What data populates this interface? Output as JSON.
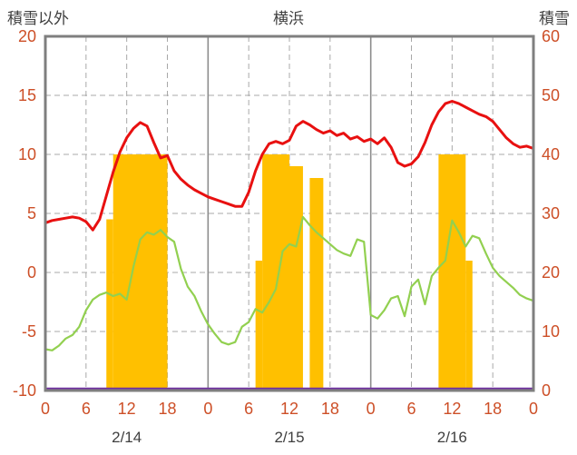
{
  "chart_data": {
    "type": "line+bar",
    "title": "横浜",
    "left_axis": {
      "label": "積雪以外",
      "min": -10,
      "max": 20,
      "ticks": [
        20,
        15,
        10,
        5,
        0,
        -5,
        -10
      ]
    },
    "right_axis": {
      "label": "積雪",
      "min": 0,
      "max": 60,
      "ticks": [
        60,
        50,
        40,
        30,
        20,
        10,
        0
      ]
    },
    "x_axis": {
      "hours_total": 72,
      "tick_interval": 6,
      "tick_labels": [
        "0",
        "6",
        "12",
        "18",
        "0",
        "6",
        "12",
        "18",
        "0",
        "6",
        "12",
        "18",
        "0"
      ],
      "day_labels": [
        {
          "label": "2/14",
          "center_hour": 12
        },
        {
          "label": "2/15",
          "center_hour": 36
        },
        {
          "label": "2/16",
          "center_hour": 60
        }
      ]
    },
    "grid": {
      "dashed": true,
      "day_boundary_solid_hours": [
        24,
        48
      ]
    },
    "series": {
      "red_line": {
        "axis": "left",
        "values": [
          4.2,
          4.4,
          4.5,
          4.6,
          4.7,
          4.6,
          4.3,
          3.6,
          4.5,
          6.5,
          8.5,
          10.2,
          11.4,
          12.2,
          12.7,
          12.4,
          11.0,
          9.7,
          9.9,
          8.6,
          7.9,
          7.4,
          7.0,
          6.7,
          6.4,
          6.2,
          6.0,
          5.8,
          5.6,
          5.6,
          6.8,
          8.6,
          10.0,
          10.9,
          11.1,
          10.9,
          11.2,
          12.4,
          12.8,
          12.5,
          12.1,
          11.8,
          12.0,
          11.6,
          11.8,
          11.3,
          11.5,
          11.1,
          11.3,
          10.9,
          11.4,
          10.6,
          9.3,
          9.0,
          9.2,
          9.8,
          11.0,
          12.5,
          13.6,
          14.3,
          14.5,
          14.3,
          14.0,
          13.7,
          13.4,
          13.2,
          12.8,
          12.1,
          11.4,
          10.9,
          10.6,
          10.7,
          10.5
        ]
      },
      "green_line": {
        "axis": "left",
        "values": [
          -6.5,
          -6.6,
          -6.2,
          -5.6,
          -5.3,
          -4.6,
          -3.2,
          -2.3,
          -1.9,
          -1.7,
          -2.0,
          -1.8,
          -2.3,
          0.5,
          2.8,
          3.4,
          3.2,
          3.6,
          3.0,
          2.6,
          0.3,
          -1.2,
          -2.0,
          -3.3,
          -4.4,
          -5.2,
          -5.9,
          -6.1,
          -5.9,
          -4.6,
          -4.2,
          -3.1,
          -3.4,
          -2.5,
          -1.4,
          1.8,
          2.4,
          2.2,
          4.7,
          4.0,
          3.4,
          2.9,
          2.4,
          1.9,
          1.6,
          1.4,
          2.8,
          2.6,
          -3.6,
          -3.9,
          -3.2,
          -2.2,
          -2.0,
          -3.7,
          -1.2,
          -0.6,
          -2.7,
          -0.3,
          0.4,
          1.0,
          4.4,
          3.4,
          2.2,
          3.1,
          2.9,
          1.6,
          0.4,
          -0.3,
          -0.8,
          -1.3,
          -1.9,
          -2.2,
          -2.4
        ]
      },
      "orange_bars": {
        "axis": "left",
        "runs": [
          {
            "from": 9,
            "to": 9,
            "value": 4.5
          },
          {
            "from": 10,
            "to": 17,
            "value": 10
          },
          {
            "from": 31,
            "to": 31,
            "value": 1
          },
          {
            "from": 32,
            "to": 35,
            "value": 10
          },
          {
            "from": 36,
            "to": 37,
            "value": 9
          },
          {
            "from": 39,
            "to": 40,
            "value": 8
          },
          {
            "from": 58,
            "to": 61,
            "value": 10
          },
          {
            "from": 62,
            "to": 62,
            "value": 1
          }
        ]
      },
      "purple_line": {
        "axis": "right",
        "constant_value": 0
      }
    }
  },
  "colors": {
    "red_line": "#e81010",
    "green_line": "#92d050",
    "orange_bars": "#ffc000",
    "purple_line": "#7030a0",
    "tick_text": "#cd4f27",
    "title_text": "#3f3f3f",
    "grid": "#a8a8a8",
    "day_boundary": "#8c8c8c",
    "border": "#7f7f7f",
    "background": "#ffffff"
  }
}
